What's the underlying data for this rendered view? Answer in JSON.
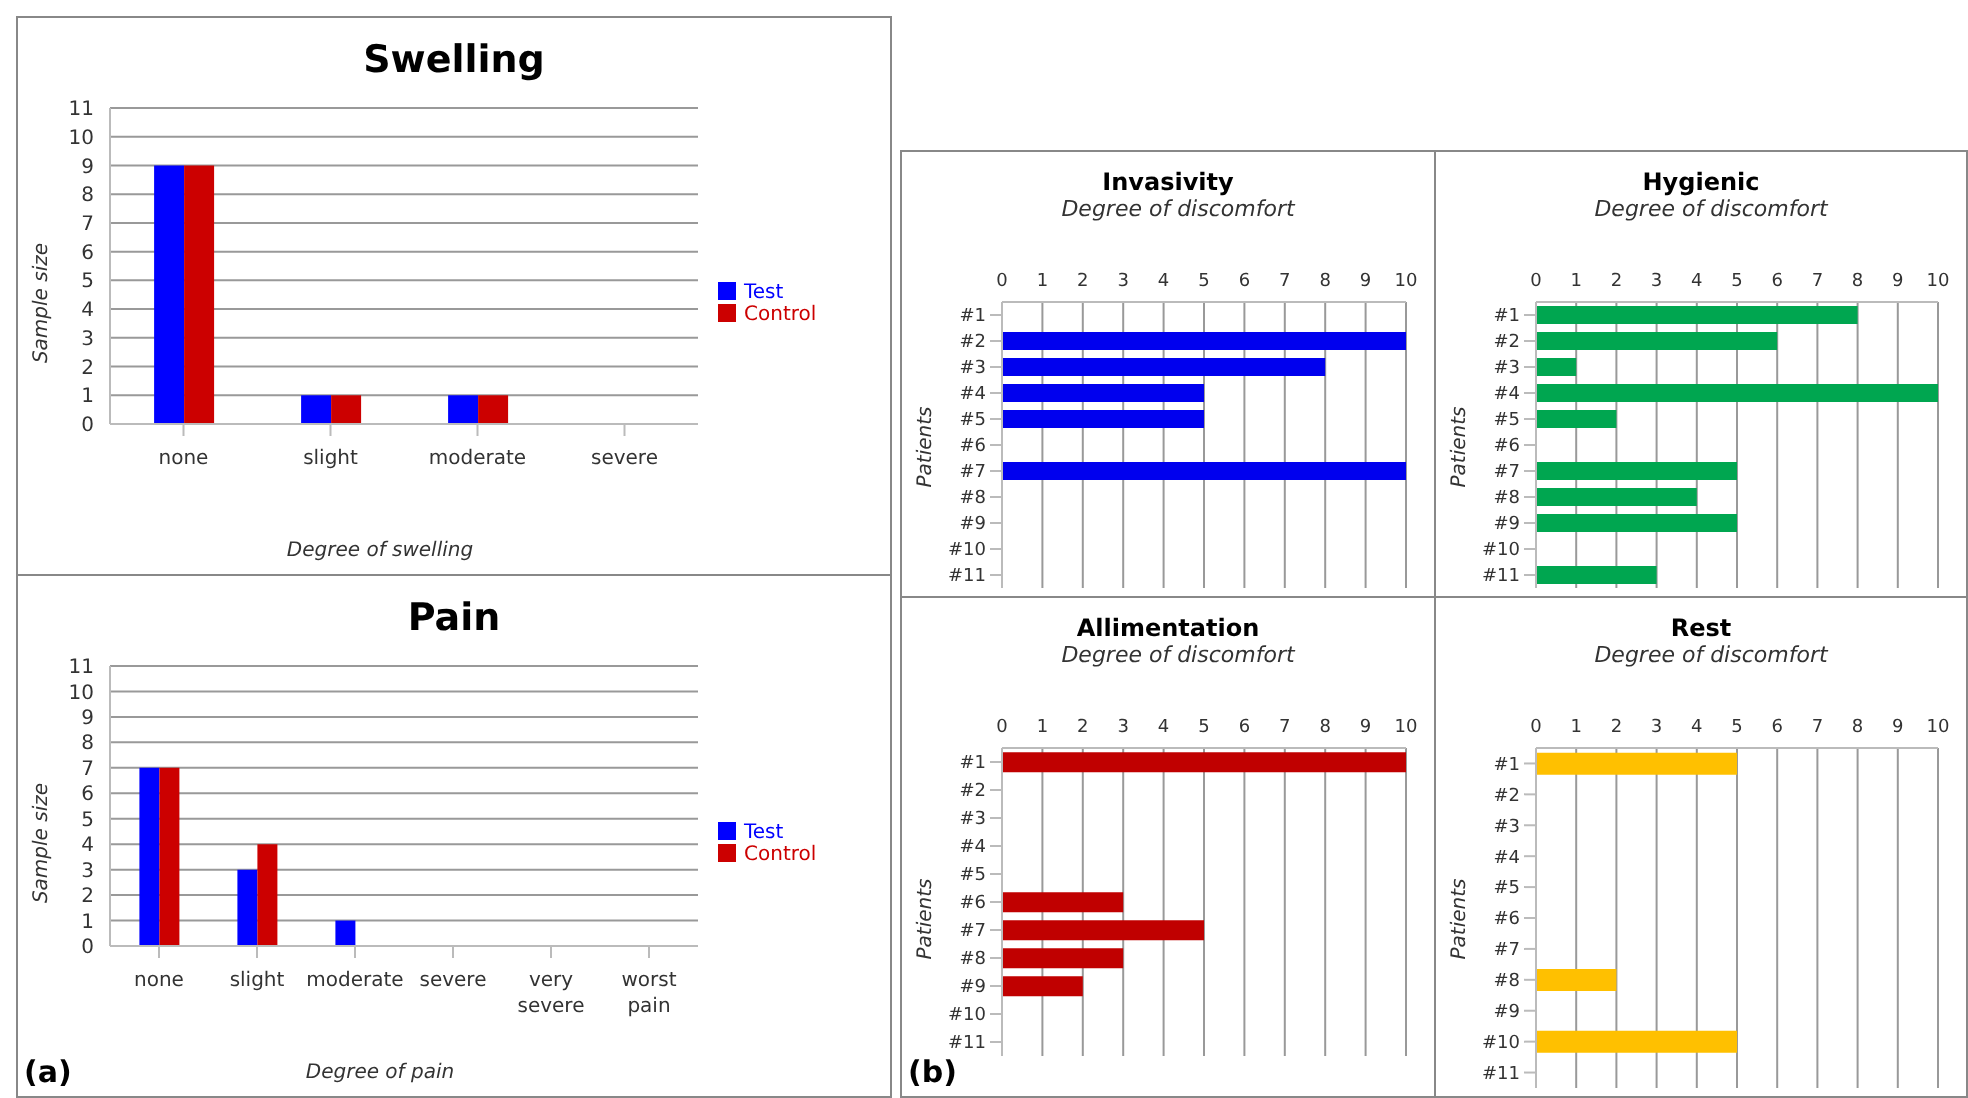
{
  "chart_data": [
    {
      "type": "bar",
      "title": "Swelling",
      "xlabel": "Degree of swelling",
      "ylabel": "Sample size",
      "categories": [
        "none",
        "slight",
        "moderate",
        "severe"
      ],
      "series": [
        {
          "name": "Test",
          "color": "#0000ff",
          "values": [
            9,
            1,
            1,
            0
          ]
        },
        {
          "name": "Control",
          "color": "#cc0000",
          "values": [
            9,
            1,
            1,
            0
          ]
        }
      ],
      "ylim": [
        0,
        11
      ],
      "yticks": [
        0,
        1,
        2,
        3,
        4,
        5,
        6,
        7,
        8,
        9,
        10,
        11
      ],
      "grid": "y",
      "legend": "right"
    },
    {
      "type": "bar",
      "title": "Pain",
      "xlabel": "Degree of pain",
      "ylabel": "Sample size",
      "categories": [
        "none",
        "slight",
        "moderate",
        "severe",
        "very severe",
        "worst pain"
      ],
      "series": [
        {
          "name": "Test",
          "color": "#0000ff",
          "values": [
            7,
            3,
            1,
            0,
            0,
            0
          ]
        },
        {
          "name": "Control",
          "color": "#cc0000",
          "values": [
            7,
            4,
            0,
            0,
            0,
            0
          ]
        }
      ],
      "ylim": [
        0,
        11
      ],
      "yticks": [
        0,
        1,
        2,
        3,
        4,
        5,
        6,
        7,
        8,
        9,
        10,
        11
      ],
      "grid": "y",
      "legend": "right",
      "annotations": [
        "(a)"
      ]
    },
    {
      "type": "bar",
      "orientation": "horizontal",
      "title": "Invasivity",
      "xlabel": "Degree of discomfort",
      "ylabel": "Patients",
      "categories": [
        "#1",
        "#2",
        "#3",
        "#4",
        "#5",
        "#6",
        "#7",
        "#8",
        "#9",
        "#10",
        "#11"
      ],
      "values": [
        0,
        10,
        8,
        5,
        5,
        0,
        10,
        0,
        0,
        0,
        0
      ],
      "color": "#0000ee",
      "xlim": [
        0,
        10
      ],
      "xticks": [
        0,
        1,
        2,
        3,
        4,
        5,
        6,
        7,
        8,
        9,
        10
      ],
      "grid": "x"
    },
    {
      "type": "bar",
      "orientation": "horizontal",
      "title": "Hygienic",
      "xlabel": "Degree of discomfort",
      "ylabel": "Patients",
      "categories": [
        "#1",
        "#2",
        "#3",
        "#4",
        "#5",
        "#6",
        "#7",
        "#8",
        "#9",
        "#10",
        "#11"
      ],
      "values": [
        8,
        6,
        1,
        10,
        2,
        0,
        5,
        4,
        5,
        0,
        3
      ],
      "color": "#00a650",
      "xlim": [
        0,
        10
      ],
      "xticks": [
        0,
        1,
        2,
        3,
        4,
        5,
        6,
        7,
        8,
        9,
        10
      ],
      "grid": "x"
    },
    {
      "type": "bar",
      "orientation": "horizontal",
      "title": "Allimentation",
      "xlabel": "Degree of discomfort",
      "ylabel": "Patients",
      "categories": [
        "#1",
        "#2",
        "#3",
        "#4",
        "#5",
        "#6",
        "#7",
        "#8",
        "#9",
        "#10",
        "#11"
      ],
      "values": [
        10,
        0,
        0,
        0,
        0,
        3,
        5,
        3,
        2,
        0,
        0
      ],
      "color": "#c00000",
      "xlim": [
        0,
        10
      ],
      "xticks": [
        0,
        1,
        2,
        3,
        4,
        5,
        6,
        7,
        8,
        9,
        10
      ],
      "grid": "x",
      "annotations": [
        "(b)"
      ]
    },
    {
      "type": "bar",
      "orientation": "horizontal",
      "title": "Rest",
      "xlabel": "Degree of discomfort",
      "ylabel": "Patients",
      "categories": [
        "#1",
        "#2",
        "#3",
        "#4",
        "#5",
        "#6",
        "#7",
        "#8",
        "#9",
        "#10",
        "#11"
      ],
      "values": [
        5,
        0,
        0,
        0,
        0,
        0,
        0,
        2,
        0,
        5,
        0
      ],
      "color": "#ffc000",
      "xlim": [
        0,
        10
      ],
      "xticks": [
        0,
        1,
        2,
        3,
        4,
        5,
        6,
        7,
        8,
        9,
        10
      ],
      "grid": "x"
    }
  ]
}
